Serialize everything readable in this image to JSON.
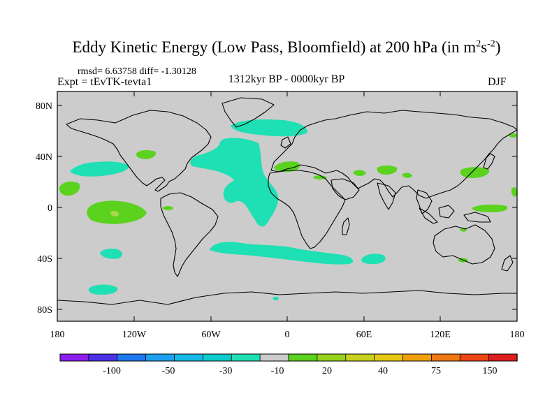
{
  "title": {
    "main": "Eddy Kinetic Energy (Low Pass, Bloomfield) at 200 hPa (in m",
    "sup1": "2",
    "mid": "s",
    "sup2": "-2",
    "end": ")"
  },
  "stats": "rmsd= 6.63758 diff= -1.30128",
  "experiment": "Expt = tEvTK-tevta1",
  "period": "1312kyr BP - 0000kyr BP",
  "season": "DJF",
  "lat_labels": [
    "80N",
    "40N",
    "0",
    "40S",
    "80S"
  ],
  "lon_labels": [
    "180",
    "120W",
    "60W",
    "0",
    "60E",
    "120E",
    "180"
  ],
  "colorbar": {
    "labels": [
      "-100",
      "-50",
      "-30",
      "-10",
      "20",
      "40",
      "75",
      "150"
    ],
    "colors": [
      "#8c1ef0",
      "#4b32e6",
      "#1e78f0",
      "#1ea0f0",
      "#16b9e6",
      "#0ecccc",
      "#1ee0b4",
      "#cccccc",
      "#5ad21e",
      "#96d21e",
      "#c8d21e",
      "#e6c814",
      "#f0a00a",
      "#f07814",
      "#eb4614",
      "#dc1e1e"
    ]
  },
  "colors": {
    "ocean_land": "#cccccc",
    "cyan": "#1ee0b4",
    "green": "#5ad21e"
  }
}
